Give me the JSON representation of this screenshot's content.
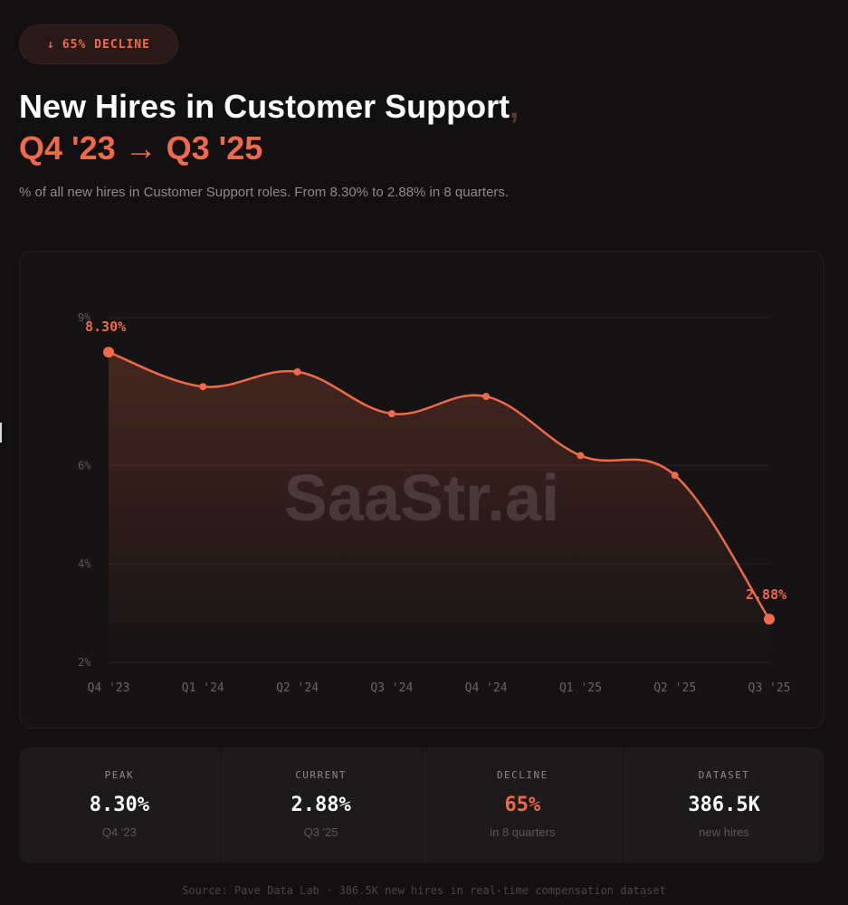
{
  "badge": {
    "arrow": "↓",
    "text": "65% DECLINE"
  },
  "title": {
    "line1": "New Hires in Customer Support",
    "comma": ",",
    "line2": "Q4 '23 → Q3 '25"
  },
  "subtitle": "% of all new hires in Customer Support roles. From 8.30% to 2.88% in 8 quarters.",
  "watermark": "SaaStr.ai",
  "colors": {
    "accent": "#ef6a4a",
    "background": "#121011",
    "card": "#161314"
  },
  "chart_data": {
    "type": "line",
    "title": "New Hires in Customer Support, Q4 '23 → Q3 '25",
    "xlabel": "",
    "ylabel": "",
    "categories": [
      "Q4 '23",
      "Q1 '24",
      "Q2 '24",
      "Q3 '24",
      "Q4 '24",
      "Q1 '25",
      "Q2 '25",
      "Q3 '25"
    ],
    "values": [
      8.3,
      7.6,
      7.9,
      7.05,
      7.4,
      6.2,
      5.8,
      2.88
    ],
    "yticks": [
      "9%",
      "6%",
      "4%",
      "2%"
    ],
    "ylim": [
      2,
      9
    ],
    "grid": true,
    "annotations": [
      {
        "index": 0,
        "text": "8.30%"
      },
      {
        "index": 7,
        "text": "2.88%"
      }
    ]
  },
  "stats": [
    {
      "label": "PEAK",
      "value": "8.30%",
      "sub": "Q4 '23"
    },
    {
      "label": "CURRENT",
      "value": "2.88%",
      "sub": "Q3 '25"
    },
    {
      "label": "DECLINE",
      "value": "65%",
      "sub": "in 8 quarters"
    },
    {
      "label": "DATASET",
      "value": "386.5K",
      "sub": "new hires"
    }
  ],
  "source": "Source: Pave Data Lab · 386.5K new hires in real-time compensation dataset"
}
